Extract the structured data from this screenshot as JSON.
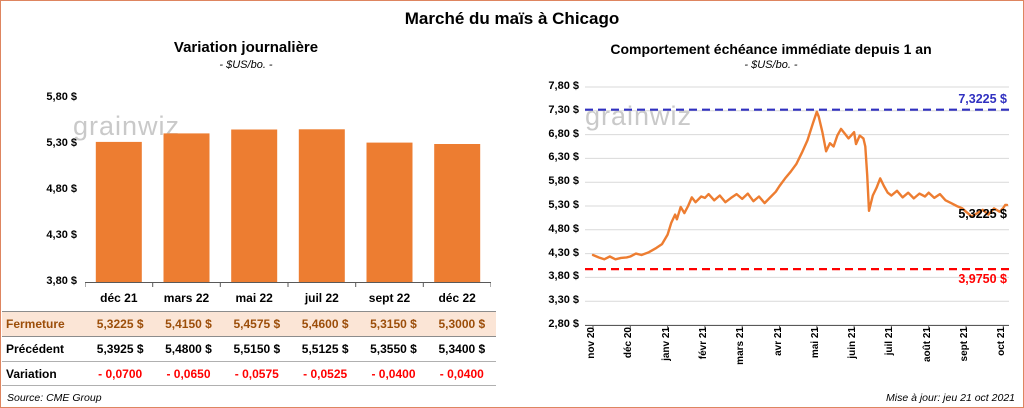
{
  "frame": {
    "title": "Marché du maïs à Chicago",
    "source": "Source: CME Group",
    "updated": "Mise à jour: jeu 21 oct 2021",
    "watermark": "grainwiz"
  },
  "colors": {
    "orange": "#ED7D31",
    "blue": "#3030C0",
    "red": "#FF0000",
    "peach": "#FBE5D6",
    "brown": "#9C4E0A",
    "grid": "#D9D9D9",
    "axis": "#595959",
    "border": "#DE8560",
    "watermark": "#C9C9C9"
  },
  "chart_data": [
    {
      "type": "bar",
      "title": "Variation  journalière",
      "subtitle": "- $US/bo. -",
      "ylabel": "",
      "ylim": [
        3.8,
        5.8
      ],
      "yticks": [
        {
          "v": 5.8,
          "label": "5,80 $"
        },
        {
          "v": 5.3,
          "label": "5,30 $"
        },
        {
          "v": 4.8,
          "label": "4,80 $"
        },
        {
          "v": 4.3,
          "label": "4,30 $"
        },
        {
          "v": 3.8,
          "label": "3,80 $"
        }
      ],
      "categories": [
        "déc 21",
        "mars 22",
        "mai 22",
        "juil 22",
        "sept 22",
        "déc 22"
      ],
      "values": [
        5.3225,
        5.415,
        5.4575,
        5.46,
        5.315,
        5.3
      ],
      "table": {
        "rows": [
          {
            "name": "fermeture",
            "label": "Fermeture",
            "values": [
              "5,3225  $",
              "5,4150  $",
              "5,4575  $",
              "5,4600  $",
              "5,3150  $",
              "5,3000  $"
            ]
          },
          {
            "name": "precedent",
            "label": "Précédent",
            "values": [
              "5,3925  $",
              "5,4800  $",
              "5,5150  $",
              "5,5125  $",
              "5,3550  $",
              "5,3400  $"
            ]
          },
          {
            "name": "variation",
            "label": "Variation",
            "values": [
              "- 0,0700",
              "- 0,0650",
              "- 0,0575",
              "- 0,0525",
              "- 0,0400",
              "- 0,0400"
            ]
          }
        ]
      }
    },
    {
      "type": "line",
      "title": "Comportement  échéance  immédiate  depuis 1 an",
      "subtitle": "- $US/bo. -",
      "ylim": [
        2.8,
        7.8
      ],
      "grid": true,
      "yticks": [
        {
          "v": 7.8,
          "label": "7,80 $"
        },
        {
          "v": 7.3,
          "label": "7,30 $"
        },
        {
          "v": 6.8,
          "label": "6,80 $"
        },
        {
          "v": 6.3,
          "label": "6,30 $"
        },
        {
          "v": 5.8,
          "label": "5,80 $"
        },
        {
          "v": 5.3,
          "label": "5,30 $"
        },
        {
          "v": 4.8,
          "label": "4,80 $"
        },
        {
          "v": 4.3,
          "label": "4,30 $"
        },
        {
          "v": 3.8,
          "label": "3,80 $"
        },
        {
          "v": 3.3,
          "label": "3,30 $"
        },
        {
          "v": 2.8,
          "label": "2,80 $"
        }
      ],
      "x_labels": [
        "nov 20",
        "déc 20",
        "janv 21",
        "févr 21",
        "mars 21",
        "avr 21",
        "mai 21",
        "juin 21",
        "juil 21",
        "août 21",
        "sept 21",
        "oct 21"
      ],
      "ref_lines": [
        {
          "name": "max",
          "value": 7.3225,
          "label": "7,3225 $",
          "color": "#3030C0"
        },
        {
          "name": "min",
          "value": 3.975,
          "label": "3,9750 $",
          "color": "#FF0000"
        }
      ],
      "last_label": {
        "text": "5,3225 $",
        "value": 5.3225
      },
      "series": [
        {
          "name": "prix",
          "points": [
            [
              0,
              4.27
            ],
            [
              0.15,
              4.22
            ],
            [
              0.3,
              4.18
            ],
            [
              0.45,
              4.24
            ],
            [
              0.6,
              4.18
            ],
            [
              0.75,
              4.21
            ],
            [
              0.9,
              4.22
            ],
            [
              1,
              4.24
            ],
            [
              1.15,
              4.3
            ],
            [
              1.3,
              4.27
            ],
            [
              1.5,
              4.33
            ],
            [
              1.7,
              4.42
            ],
            [
              1.85,
              4.5
            ],
            [
              2,
              4.7
            ],
            [
              2.1,
              4.95
            ],
            [
              2.2,
              5.12
            ],
            [
              2.25,
              5.02
            ],
            [
              2.35,
              5.28
            ],
            [
              2.45,
              5.15
            ],
            [
              2.55,
              5.3
            ],
            [
              2.65,
              5.48
            ],
            [
              2.75,
              5.38
            ],
            [
              2.9,
              5.5
            ],
            [
              3,
              5.47
            ],
            [
              3.1,
              5.55
            ],
            [
              3.25,
              5.42
            ],
            [
              3.4,
              5.52
            ],
            [
              3.55,
              5.38
            ],
            [
              3.7,
              5.47
            ],
            [
              3.85,
              5.55
            ],
            [
              4,
              5.45
            ],
            [
              4.15,
              5.56
            ],
            [
              4.3,
              5.4
            ],
            [
              4.45,
              5.5
            ],
            [
              4.6,
              5.36
            ],
            [
              4.75,
              5.48
            ],
            [
              4.9,
              5.6
            ],
            [
              5,
              5.72
            ],
            [
              5.15,
              5.88
            ],
            [
              5.3,
              6.02
            ],
            [
              5.45,
              6.18
            ],
            [
              5.6,
              6.42
            ],
            [
              5.75,
              6.68
            ],
            [
              5.9,
              7.05
            ],
            [
              6,
              7.28
            ],
            [
              6.05,
              7.18
            ],
            [
              6.15,
              6.85
            ],
            [
              6.25,
              6.45
            ],
            [
              6.35,
              6.62
            ],
            [
              6.45,
              6.55
            ],
            [
              6.55,
              6.78
            ],
            [
              6.65,
              6.92
            ],
            [
              6.75,
              6.82
            ],
            [
              6.85,
              6.72
            ],
            [
              7,
              6.85
            ],
            [
              7.05,
              6.6
            ],
            [
              7.15,
              6.78
            ],
            [
              7.25,
              6.72
            ],
            [
              7.3,
              6.55
            ],
            [
              7.35,
              5.95
            ],
            [
              7.4,
              5.2
            ],
            [
              7.5,
              5.52
            ],
            [
              7.6,
              5.68
            ],
            [
              7.7,
              5.88
            ],
            [
              7.8,
              5.72
            ],
            [
              7.9,
              5.58
            ],
            [
              8,
              5.52
            ],
            [
              8.15,
              5.62
            ],
            [
              8.3,
              5.48
            ],
            [
              8.45,
              5.58
            ],
            [
              8.6,
              5.46
            ],
            [
              8.75,
              5.56
            ],
            [
              8.9,
              5.5
            ],
            [
              9,
              5.58
            ],
            [
              9.15,
              5.47
            ],
            [
              9.3,
              5.55
            ],
            [
              9.45,
              5.42
            ],
            [
              9.6,
              5.36
            ],
            [
              9.75,
              5.3
            ],
            [
              9.9,
              5.25
            ],
            [
              10,
              5.18
            ],
            [
              10.15,
              5.08
            ],
            [
              10.3,
              5.15
            ],
            [
              10.45,
              5.22
            ],
            [
              10.6,
              5.12
            ],
            [
              10.75,
              5.25
            ],
            [
              10.9,
              5.18
            ],
            [
              11,
              5.26
            ],
            [
              11.05,
              5.32
            ],
            [
              11.1,
              5.3225
            ]
          ]
        }
      ]
    }
  ]
}
